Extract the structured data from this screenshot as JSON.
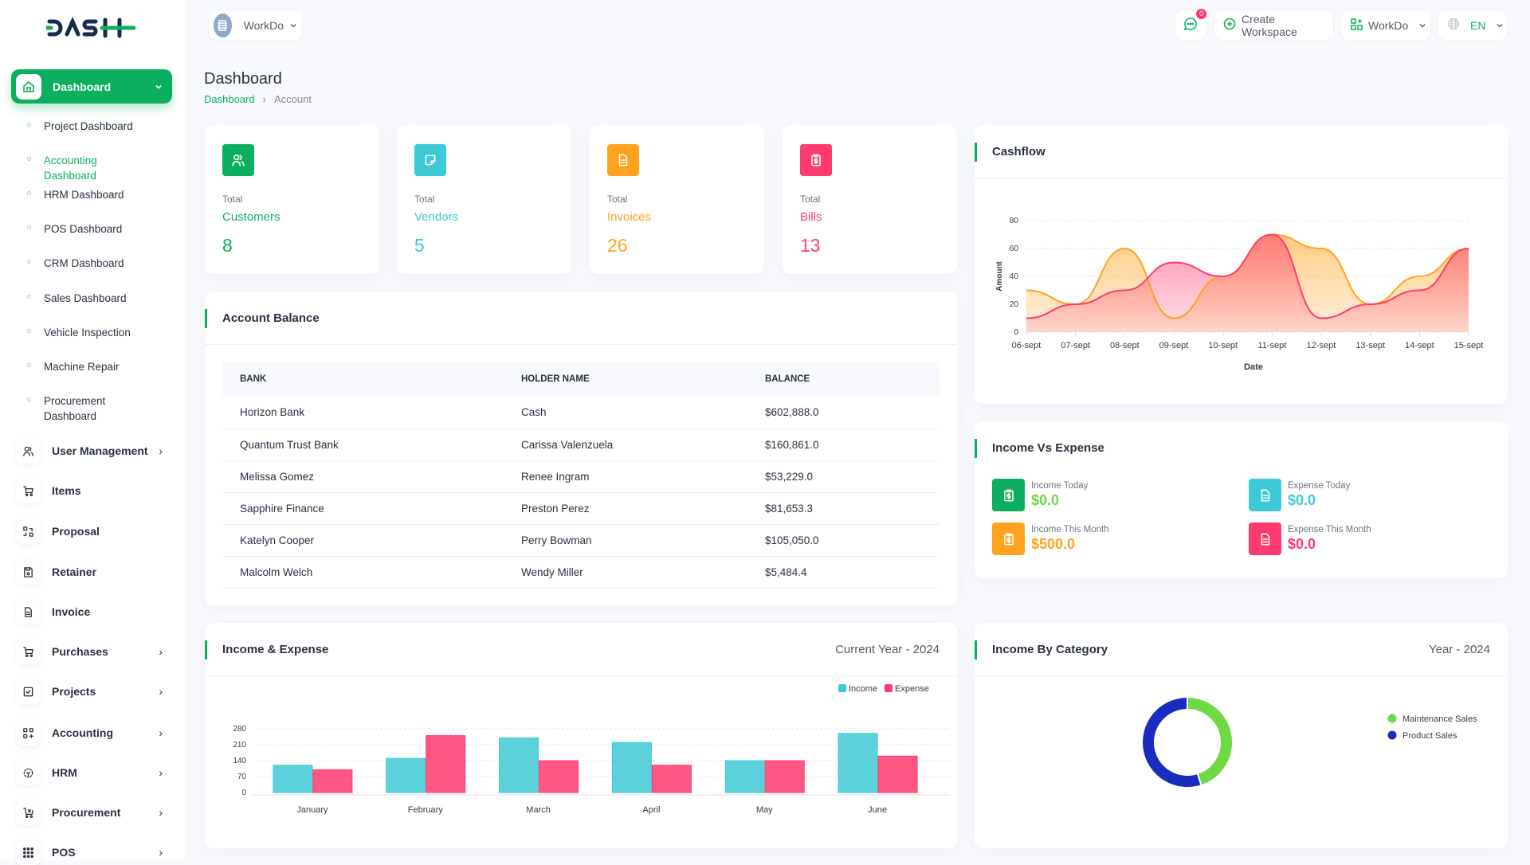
{
  "logo": "DASH",
  "header": {
    "workspace": "WorkDo",
    "notifications": "0",
    "create_workspace": "Create Workspace",
    "workspace2": "WorkDo",
    "language": "EN"
  },
  "sidebar": {
    "active": "Dashboard",
    "subitems": [
      "Project Dashboard",
      "Accounting Dashboard",
      "HRM Dashboard",
      "POS Dashboard",
      "CRM Dashboard",
      "Sales Dashboard",
      "Vehicle Inspection",
      "Machine Repair",
      "Procurement Dashboard"
    ],
    "active_sub": 1,
    "items": [
      {
        "label": "User Management",
        "icon": "users-icon",
        "chev": true
      },
      {
        "label": "Items",
        "icon": "cart-icon",
        "chev": false
      },
      {
        "label": "Proposal",
        "icon": "swap-icon",
        "chev": false
      },
      {
        "label": "Retainer",
        "icon": "save-icon",
        "chev": false
      },
      {
        "label": "Invoice",
        "icon": "file-invoice-icon",
        "chev": false
      },
      {
        "label": "Purchases",
        "icon": "cart-icon",
        "chev": true
      },
      {
        "label": "Projects",
        "icon": "checkbox-icon",
        "chev": true
      },
      {
        "label": "Accounting",
        "icon": "apps-icon",
        "chev": true
      },
      {
        "label": "HRM",
        "icon": "hrm-icon",
        "chev": true
      },
      {
        "label": "Procurement",
        "icon": "procurement-icon",
        "chev": true
      },
      {
        "label": "POS",
        "icon": "grid-dots-icon",
        "chev": true
      }
    ]
  },
  "page": {
    "title": "Dashboard",
    "breadcrumb": [
      "Dashboard",
      "Account"
    ]
  },
  "stats": [
    {
      "total": "Total",
      "label": "Customers",
      "value": "8",
      "color": "#0caf60",
      "icon": "users-icon"
    },
    {
      "total": "Total",
      "label": "Vendors",
      "value": "5",
      "color": "#3ec9d6",
      "icon": "note-icon"
    },
    {
      "total": "Total",
      "label": "Invoices",
      "value": "26",
      "color": "#ffa21d",
      "icon": "file-invoice-icon"
    },
    {
      "total": "Total",
      "label": "Bills",
      "value": "13",
      "color": "#ff3a6e",
      "icon": "clipboard-dollar-icon"
    }
  ],
  "account_balance": {
    "title": "Account Balance",
    "columns": [
      "BANK",
      "HOLDER NAME",
      "BALANCE"
    ],
    "rows": [
      [
        "Horizon Bank",
        "Cash",
        "$602,888.0"
      ],
      [
        "Quantum Trust Bank",
        "Carissa Valenzuela",
        "$160,861.0"
      ],
      [
        "Melissa Gomez",
        "Renee Ingram",
        "$53,229.0"
      ],
      [
        "Sapphire Finance",
        "Preston Perez",
        "$81,653.3"
      ],
      [
        "Katelyn Cooper",
        "Perry Bowman",
        "$105,050.0"
      ],
      [
        "Malcolm Welch",
        "Wendy Miller",
        "$5,484.4"
      ]
    ]
  },
  "cashflow": {
    "title": "Cashflow"
  },
  "income_vs_expense": {
    "title": "Income Vs Expense",
    "items": [
      {
        "label": "Income Today",
        "value": "$0.0",
        "color": "#0caf60",
        "text_color": "#6fd943"
      },
      {
        "label": "Expense Today",
        "value": "$0.0",
        "color": "#3ec9d6",
        "text_color": "#3ec9d6"
      },
      {
        "label": "Income This Month",
        "value": "$500.0",
        "color": "#ffa21d",
        "text_color": "#ffa21d"
      },
      {
        "label": "Expense This Month",
        "value": "$0.0",
        "color": "#ff3a6e",
        "text_color": "#ff3a6e"
      }
    ]
  },
  "income_expense": {
    "title": "Income & Expense",
    "period": "Current Year - 2024"
  },
  "income_by_category": {
    "title": "Income By Category",
    "period": "Year - 2024"
  },
  "chart_data": [
    {
      "type": "area",
      "xlabel": "Date",
      "ylabel": "Amount",
      "ylim": [
        0,
        80
      ],
      "yticks": [
        0,
        20,
        40,
        60,
        80
      ],
      "grid": true,
      "x": [
        "06-sept",
        "07-sept",
        "08-sept",
        "09-sept",
        "10-sept",
        "11-sept",
        "12-sept",
        "13-sept",
        "14-sept",
        "15-sept"
      ],
      "series": [
        {
          "values": [
            30,
            20,
            60,
            10,
            40,
            70,
            60,
            20,
            40,
            60
          ],
          "color": "#ffa21d"
        },
        {
          "values": [
            10,
            20,
            30,
            50,
            40,
            70,
            10,
            20,
            30,
            60
          ],
          "color": "#ff3a6e"
        }
      ]
    },
    {
      "type": "bar",
      "ylim": [
        0,
        280
      ],
      "yticks": [
        0,
        70,
        140,
        210,
        280
      ],
      "grid": true,
      "legend": "top-right",
      "categories": [
        "January",
        "February",
        "March",
        "April",
        "May",
        "June"
      ],
      "series": [
        {
          "name": "Income",
          "values": [
            120,
            150,
            240,
            220,
            140,
            260
          ],
          "color": "#3ec9d6"
        },
        {
          "name": "Expense",
          "values": [
            100,
            250,
            140,
            120,
            140,
            160
          ],
          "color": "#ff3a6e"
        }
      ]
    },
    {
      "type": "pie",
      "donut": true,
      "legend": "right",
      "labels": [
        "Maintenance Sales",
        "Product Sales"
      ],
      "values": [
        45,
        55
      ],
      "colors": [
        "#6fd943",
        "#1a2cbf"
      ]
    }
  ]
}
